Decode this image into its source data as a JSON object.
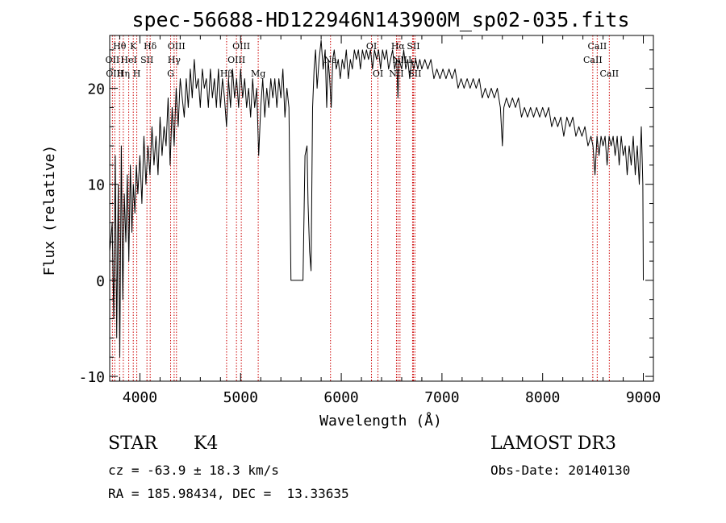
{
  "chart_data": {
    "type": "line",
    "title": "spec-56688-HD122946N143900M_sp02-035.fits",
    "xlabel": "Wavelength (Å)",
    "ylabel": "Flux (relative)",
    "xlim": [
      3700,
      9100
    ],
    "ylim": [
      -10.5,
      25.5
    ],
    "x_ticks": [
      4000,
      5000,
      6000,
      7000,
      8000,
      9000
    ],
    "y_ticks": [
      -10,
      0,
      10,
      20
    ],
    "line_color": "#000000",
    "marker_color": "#cc0000",
    "series": [
      {
        "name": "flux",
        "points": [
          [
            3700,
            3
          ],
          [
            3725,
            6
          ],
          [
            3740,
            -4
          ],
          [
            3755,
            13
          ],
          [
            3770,
            -6
          ],
          [
            3785,
            10
          ],
          [
            3800,
            -8
          ],
          [
            3815,
            14
          ],
          [
            3830,
            -2
          ],
          [
            3845,
            9
          ],
          [
            3860,
            4
          ],
          [
            3875,
            11
          ],
          [
            3890,
            2
          ],
          [
            3905,
            12
          ],
          [
            3920,
            5
          ],
          [
            3935,
            10
          ],
          [
            3950,
            7
          ],
          [
            3965,
            12
          ],
          [
            3980,
            9
          ],
          [
            4000,
            13
          ],
          [
            4020,
            8
          ],
          [
            4040,
            15
          ],
          [
            4060,
            10
          ],
          [
            4080,
            14
          ],
          [
            4100,
            11
          ],
          [
            4120,
            16
          ],
          [
            4140,
            12
          ],
          [
            4160,
            15
          ],
          [
            4180,
            11
          ],
          [
            4200,
            17
          ],
          [
            4220,
            13
          ],
          [
            4240,
            16
          ],
          [
            4260,
            14
          ],
          [
            4280,
            19
          ],
          [
            4300,
            12
          ],
          [
            4320,
            18
          ],
          [
            4340,
            14
          ],
          [
            4360,
            20
          ],
          [
            4380,
            16
          ],
          [
            4400,
            21
          ],
          [
            4420,
            19
          ],
          [
            4440,
            17
          ],
          [
            4460,
            21
          ],
          [
            4480,
            18
          ],
          [
            4500,
            22
          ],
          [
            4520,
            19
          ],
          [
            4540,
            23
          ],
          [
            4560,
            20
          ],
          [
            4580,
            21
          ],
          [
            4600,
            18
          ],
          [
            4620,
            22
          ],
          [
            4640,
            20
          ],
          [
            4660,
            21
          ],
          [
            4680,
            18
          ],
          [
            4700,
            22
          ],
          [
            4720,
            19
          ],
          [
            4740,
            21
          ],
          [
            4760,
            18
          ],
          [
            4780,
            22
          ],
          [
            4800,
            18
          ],
          [
            4820,
            21
          ],
          [
            4840,
            19
          ],
          [
            4860,
            16
          ],
          [
            4880,
            21
          ],
          [
            4900,
            18
          ],
          [
            4920,
            22
          ],
          [
            4940,
            19
          ],
          [
            4960,
            21
          ],
          [
            4980,
            18
          ],
          [
            5000,
            22
          ],
          [
            5020,
            19
          ],
          [
            5040,
            21
          ],
          [
            5060,
            18
          ],
          [
            5080,
            20
          ],
          [
            5100,
            17
          ],
          [
            5120,
            21
          ],
          [
            5140,
            18
          ],
          [
            5160,
            20
          ],
          [
            5180,
            13
          ],
          [
            5200,
            18
          ],
          [
            5220,
            21
          ],
          [
            5240,
            17
          ],
          [
            5260,
            20
          ],
          [
            5280,
            18
          ],
          [
            5300,
            21
          ],
          [
            5320,
            19
          ],
          [
            5340,
            21
          ],
          [
            5360,
            18
          ],
          [
            5380,
            21
          ],
          [
            5400,
            19
          ],
          [
            5420,
            22
          ],
          [
            5440,
            17
          ],
          [
            5460,
            20
          ],
          [
            5480,
            18
          ],
          [
            5500,
            0
          ],
          [
            5580,
            0
          ],
          [
            5590,
            0
          ],
          [
            5620,
            0
          ],
          [
            5640,
            13
          ],
          [
            5660,
            14
          ],
          [
            5670,
            8
          ],
          [
            5685,
            3
          ],
          [
            5700,
            1
          ],
          [
            5715,
            18
          ],
          [
            5730,
            22
          ],
          [
            5745,
            24
          ],
          [
            5760,
            20
          ],
          [
            5780,
            23
          ],
          [
            5800,
            25
          ],
          [
            5820,
            22
          ],
          [
            5840,
            24
          ],
          [
            5855,
            18
          ],
          [
            5870,
            23
          ],
          [
            5885,
            21
          ],
          [
            5900,
            18
          ],
          [
            5915,
            23
          ],
          [
            5930,
            24
          ],
          [
            5950,
            22
          ],
          [
            5970,
            23
          ],
          [
            5990,
            21
          ],
          [
            6010,
            23
          ],
          [
            6030,
            22
          ],
          [
            6050,
            24
          ],
          [
            6070,
            21
          ],
          [
            6090,
            23
          ],
          [
            6110,
            22
          ],
          [
            6130,
            24
          ],
          [
            6150,
            23
          ],
          [
            6170,
            24
          ],
          [
            6190,
            22
          ],
          [
            6210,
            24
          ],
          [
            6230,
            23
          ],
          [
            6250,
            24
          ],
          [
            6270,
            23
          ],
          [
            6290,
            24
          ],
          [
            6310,
            22
          ],
          [
            6330,
            24
          ],
          [
            6350,
            23
          ],
          [
            6370,
            24
          ],
          [
            6390,
            22
          ],
          [
            6410,
            24
          ],
          [
            6430,
            23
          ],
          [
            6450,
            24
          ],
          [
            6470,
            22
          ],
          [
            6490,
            23
          ],
          [
            6510,
            24
          ],
          [
            6530,
            22
          ],
          [
            6550,
            23
          ],
          [
            6563,
            19
          ],
          [
            6575,
            23
          ],
          [
            6600,
            22
          ],
          [
            6620,
            24
          ],
          [
            6640,
            22
          ],
          [
            6660,
            23
          ],
          [
            6680,
            21
          ],
          [
            6700,
            23
          ],
          [
            6720,
            22
          ],
          [
            6740,
            23
          ],
          [
            6760,
            22
          ],
          [
            6780,
            23
          ],
          [
            6800,
            22
          ],
          [
            6830,
            23
          ],
          [
            6860,
            22
          ],
          [
            6890,
            23
          ],
          [
            6920,
            21
          ],
          [
            6950,
            22
          ],
          [
            6980,
            21
          ],
          [
            7010,
            22
          ],
          [
            7040,
            21
          ],
          [
            7070,
            22
          ],
          [
            7100,
            21
          ],
          [
            7130,
            22
          ],
          [
            7160,
            20
          ],
          [
            7190,
            21
          ],
          [
            7220,
            20
          ],
          [
            7250,
            21
          ],
          [
            7280,
            20
          ],
          [
            7310,
            21
          ],
          [
            7340,
            20
          ],
          [
            7370,
            21
          ],
          [
            7400,
            19
          ],
          [
            7430,
            20
          ],
          [
            7460,
            19
          ],
          [
            7490,
            20
          ],
          [
            7520,
            19
          ],
          [
            7550,
            20
          ],
          [
            7580,
            18
          ],
          [
            7600,
            14
          ],
          [
            7615,
            18
          ],
          [
            7640,
            19
          ],
          [
            7670,
            18
          ],
          [
            7700,
            19
          ],
          [
            7730,
            18
          ],
          [
            7760,
            19
          ],
          [
            7790,
            17
          ],
          [
            7820,
            18
          ],
          [
            7850,
            17
          ],
          [
            7880,
            18
          ],
          [
            7910,
            17
          ],
          [
            7940,
            18
          ],
          [
            7970,
            17
          ],
          [
            8000,
            18
          ],
          [
            8030,
            17
          ],
          [
            8060,
            18
          ],
          [
            8090,
            16
          ],
          [
            8120,
            17
          ],
          [
            8150,
            16
          ],
          [
            8180,
            17
          ],
          [
            8210,
            15
          ],
          [
            8240,
            17
          ],
          [
            8270,
            16
          ],
          [
            8300,
            17
          ],
          [
            8330,
            15
          ],
          [
            8360,
            16
          ],
          [
            8390,
            15
          ],
          [
            8420,
            16
          ],
          [
            8450,
            14
          ],
          [
            8480,
            15
          ],
          [
            8500,
            14
          ],
          [
            8520,
            11
          ],
          [
            8540,
            15
          ],
          [
            8560,
            13
          ],
          [
            8580,
            15
          ],
          [
            8600,
            14
          ],
          [
            8620,
            15
          ],
          [
            8640,
            12
          ],
          [
            8660,
            15
          ],
          [
            8680,
            14
          ],
          [
            8700,
            15
          ],
          [
            8720,
            13
          ],
          [
            8740,
            15
          ],
          [
            8760,
            12
          ],
          [
            8780,
            15
          ],
          [
            8800,
            13
          ],
          [
            8820,
            14
          ],
          [
            8840,
            11
          ],
          [
            8860,
            14
          ],
          [
            8880,
            12
          ],
          [
            8900,
            15
          ],
          [
            8920,
            11
          ],
          [
            8940,
            14
          ],
          [
            8960,
            10
          ],
          [
            8980,
            16
          ],
          [
            8995,
            10
          ],
          [
            9000,
            0
          ]
        ]
      }
    ],
    "spectral_lines": [
      {
        "label": "Hθ",
        "wavelength": 3798,
        "row": 1
      },
      {
        "label": "OII",
        "wavelength": 3727,
        "row": 2
      },
      {
        "label": "OIII",
        "wavelength": 3750,
        "row": 3
      },
      {
        "label": "Hη",
        "wavelength": 3835,
        "row": 3
      },
      {
        "label": "HeI",
        "wavelength": 3889,
        "row": 2
      },
      {
        "label": "K",
        "wavelength": 3934,
        "row": 1
      },
      {
        "label": "H",
        "wavelength": 3969,
        "row": 3
      },
      {
        "label": "SII",
        "wavelength": 4070,
        "row": 2
      },
      {
        "label": "Hδ",
        "wavelength": 4102,
        "row": 1
      },
      {
        "label": "OIII",
        "wavelength": 4363,
        "row": 1
      },
      {
        "label": "Hγ",
        "wavelength": 4340,
        "row": 2
      },
      {
        "label": "G",
        "wavelength": 4305,
        "row": 3
      },
      {
        "label": "Hβ",
        "wavelength": 4861,
        "row": 3
      },
      {
        "label": "OIII",
        "wavelength": 5007,
        "row": 1
      },
      {
        "label": "OIII",
        "wavelength": 4959,
        "row": 2
      },
      {
        "label": "Mg",
        "wavelength": 5175,
        "row": 3
      },
      {
        "label": "Na",
        "wavelength": 5893,
        "row": 2
      },
      {
        "label": "OI",
        "wavelength": 6300,
        "row": 1
      },
      {
        "label": "OI",
        "wavelength": 6364,
        "row": 3
      },
      {
        "label": "NII",
        "wavelength": 6548,
        "row": 3
      },
      {
        "label": "Hα",
        "wavelength": 6563,
        "row": 1
      },
      {
        "label": "NII",
        "wavelength": 6583,
        "row": 2
      },
      {
        "label": "Li",
        "wavelength": 6708,
        "row": 2
      },
      {
        "label": "SII",
        "wavelength": 6716,
        "row": 1
      },
      {
        "label": "SII",
        "wavelength": 6731,
        "row": 3
      },
      {
        "label": "CaII",
        "wavelength": 8542,
        "row": 1
      },
      {
        "label": "CaII",
        "wavelength": 8498,
        "row": 2
      },
      {
        "label": "CaII",
        "wavelength": 8662,
        "row": 3
      }
    ]
  },
  "info": {
    "classification": "STAR",
    "subclass": "K4",
    "survey": "LAMOST DR3",
    "redshift_line": "cz = -63.9 ± 18.3 km/s",
    "obs_date_line": "Obs-Date: 20140130",
    "coords_line": "RA = 185.98434, DEC =  13.33635"
  }
}
